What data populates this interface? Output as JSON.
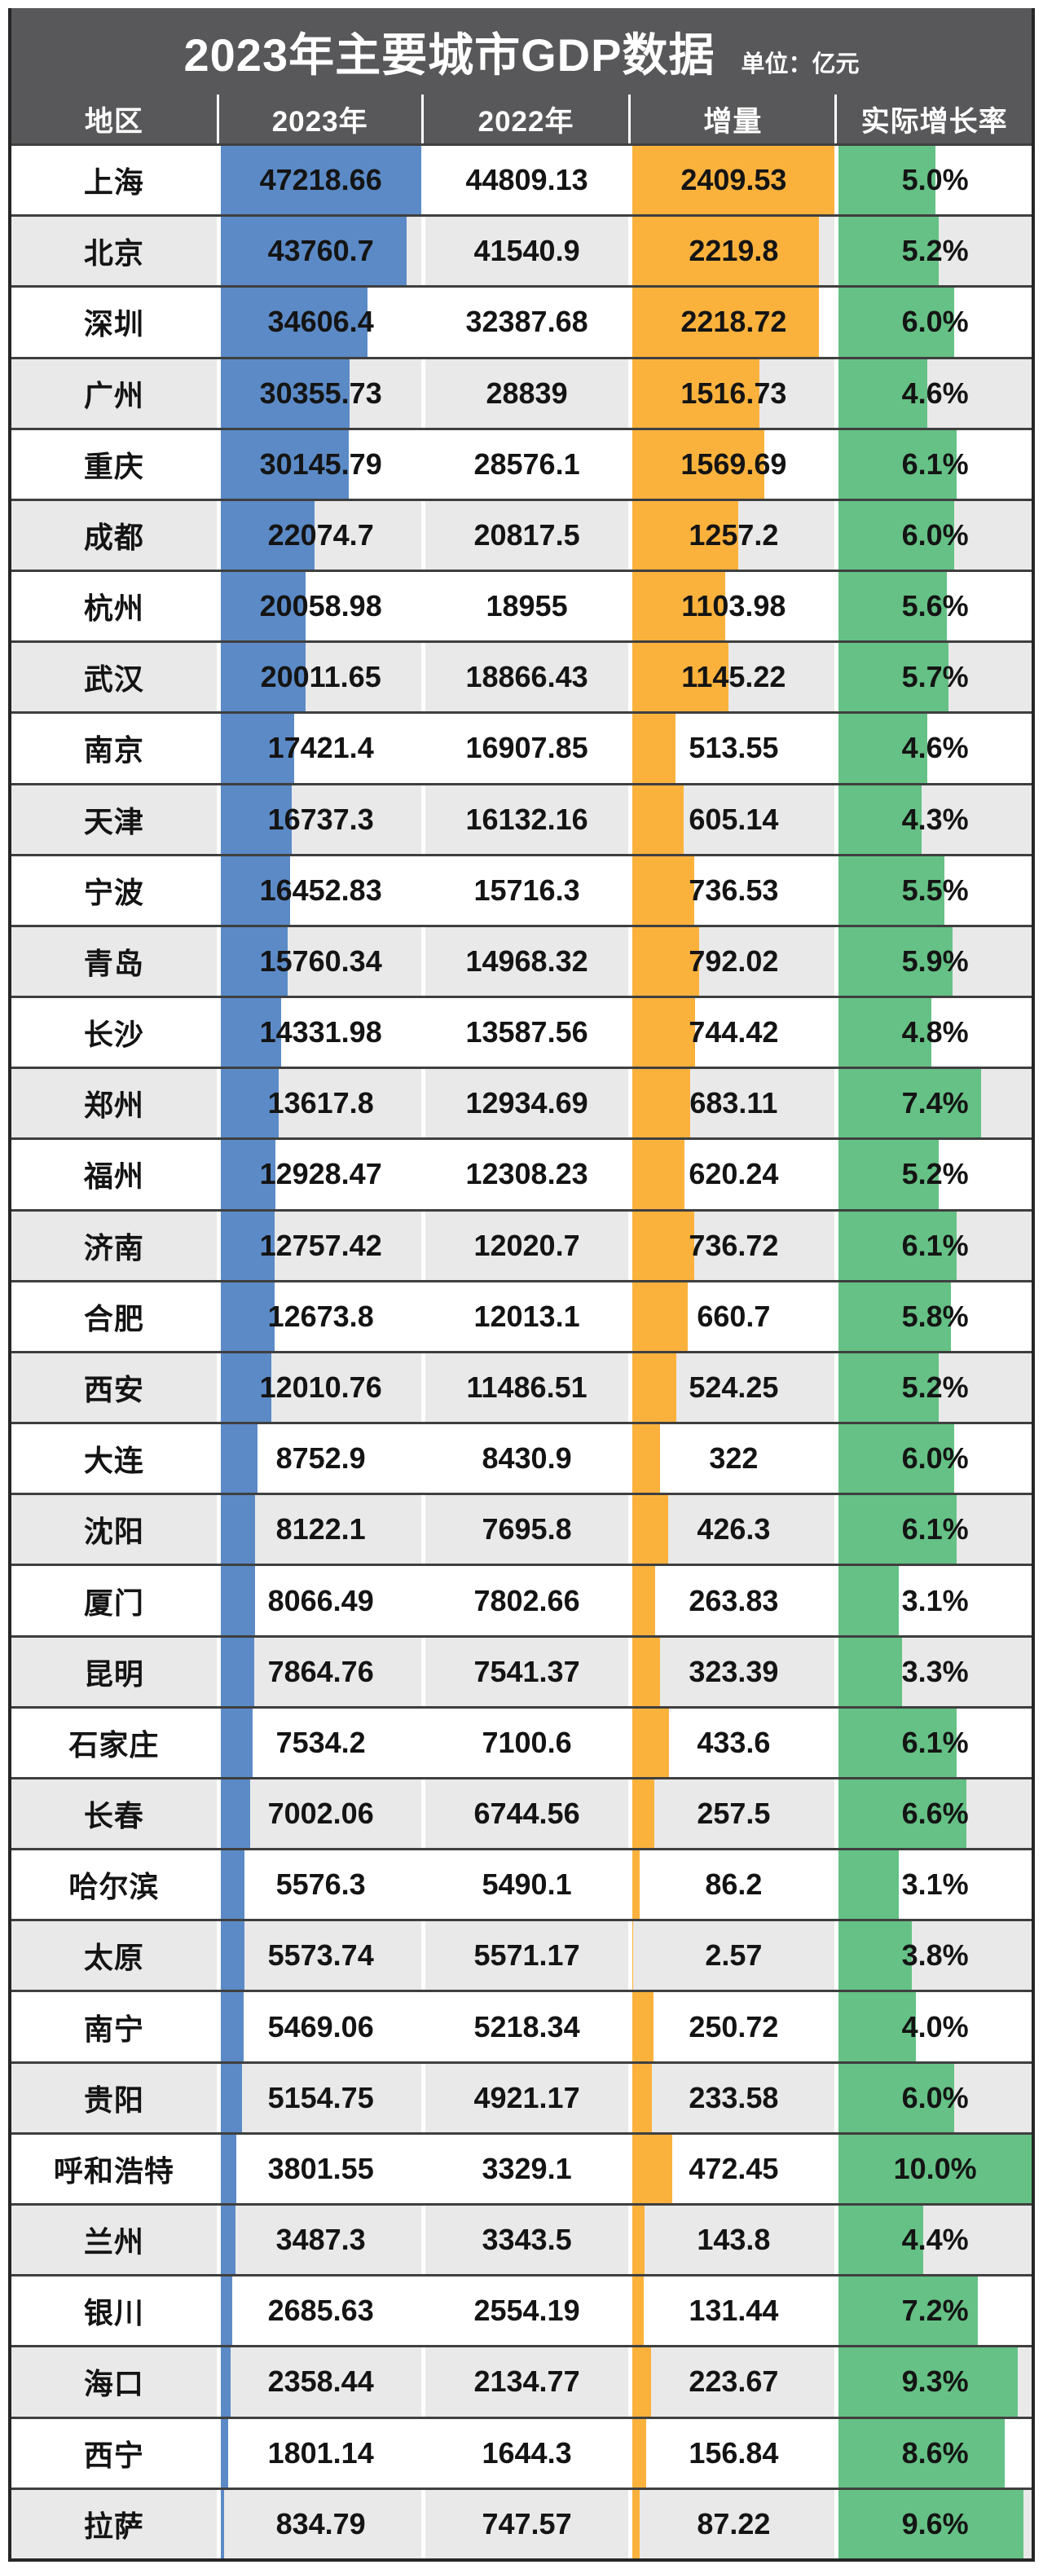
{
  "header": {
    "title": "2023年主要城市GDP数据",
    "unit": "单位：亿元"
  },
  "colors": {
    "header_bg": "#58585a",
    "header_text": "#ffffff",
    "bar_blue": "#5b8ac6",
    "bar_orange": "#fbb23d",
    "bar_green": "#65c185",
    "row_alt_bg": "#e9e9e9",
    "row_separator": "#3f3f3f",
    "outer_border": "#262626",
    "body_text": "#141414"
  },
  "chart_data": {
    "type": "table",
    "title": "2023年主要城市GDP数据",
    "unit": "亿元",
    "columns": [
      "地区",
      "2023年",
      "2022年",
      "增量",
      "实际增长率"
    ],
    "bar_columns": [
      "2023年",
      "增量",
      "实际增长率"
    ],
    "bar_scales": {
      "gdp_2023_max": 47218.66,
      "delta_max": 2409.53,
      "rate_max_percent": 10.0
    },
    "rows": [
      {
        "city": "上海",
        "gdp_2023": "47218.66",
        "gdp_2022": "44809.13",
        "delta": "2409.53",
        "rate": "5.0%"
      },
      {
        "city": "北京",
        "gdp_2023": "43760.7",
        "gdp_2022": "41540.9",
        "delta": "2219.8",
        "rate": "5.2%"
      },
      {
        "city": "深圳",
        "gdp_2023": "34606.4",
        "gdp_2022": "32387.68",
        "delta": "2218.72",
        "rate": "6.0%"
      },
      {
        "city": "广州",
        "gdp_2023": "30355.73",
        "gdp_2022": "28839",
        "delta": "1516.73",
        "rate": "4.6%"
      },
      {
        "city": "重庆",
        "gdp_2023": "30145.79",
        "gdp_2022": "28576.1",
        "delta": "1569.69",
        "rate": "6.1%"
      },
      {
        "city": "成都",
        "gdp_2023": "22074.7",
        "gdp_2022": "20817.5",
        "delta": "1257.2",
        "rate": "6.0%"
      },
      {
        "city": "杭州",
        "gdp_2023": "20058.98",
        "gdp_2022": "18955",
        "delta": "1103.98",
        "rate": "5.6%"
      },
      {
        "city": "武汉",
        "gdp_2023": "20011.65",
        "gdp_2022": "18866.43",
        "delta": "1145.22",
        "rate": "5.7%"
      },
      {
        "city": "南京",
        "gdp_2023": "17421.4",
        "gdp_2022": "16907.85",
        "delta": "513.55",
        "rate": "4.6%"
      },
      {
        "city": "天津",
        "gdp_2023": "16737.3",
        "gdp_2022": "16132.16",
        "delta": "605.14",
        "rate": "4.3%"
      },
      {
        "city": "宁波",
        "gdp_2023": "16452.83",
        "gdp_2022": "15716.3",
        "delta": "736.53",
        "rate": "5.5%"
      },
      {
        "city": "青岛",
        "gdp_2023": "15760.34",
        "gdp_2022": "14968.32",
        "delta": "792.02",
        "rate": "5.9%"
      },
      {
        "city": "长沙",
        "gdp_2023": "14331.98",
        "gdp_2022": "13587.56",
        "delta": "744.42",
        "rate": "4.8%"
      },
      {
        "city": "郑州",
        "gdp_2023": "13617.8",
        "gdp_2022": "12934.69",
        "delta": "683.11",
        "rate": "7.4%"
      },
      {
        "city": "福州",
        "gdp_2023": "12928.47",
        "gdp_2022": "12308.23",
        "delta": "620.24",
        "rate": "5.2%"
      },
      {
        "city": "济南",
        "gdp_2023": "12757.42",
        "gdp_2022": "12020.7",
        "delta": "736.72",
        "rate": "6.1%"
      },
      {
        "city": "合肥",
        "gdp_2023": "12673.8",
        "gdp_2022": "12013.1",
        "delta": "660.7",
        "rate": "5.8%"
      },
      {
        "city": "西安",
        "gdp_2023": "12010.76",
        "gdp_2022": "11486.51",
        "delta": "524.25",
        "rate": "5.2%"
      },
      {
        "city": "大连",
        "gdp_2023": "8752.9",
        "gdp_2022": "8430.9",
        "delta": "322",
        "rate": "6.0%"
      },
      {
        "city": "沈阳",
        "gdp_2023": "8122.1",
        "gdp_2022": "7695.8",
        "delta": "426.3",
        "rate": "6.1%"
      },
      {
        "city": "厦门",
        "gdp_2023": "8066.49",
        "gdp_2022": "7802.66",
        "delta": "263.83",
        "rate": "3.1%"
      },
      {
        "city": "昆明",
        "gdp_2023": "7864.76",
        "gdp_2022": "7541.37",
        "delta": "323.39",
        "rate": "3.3%"
      },
      {
        "city": "石家庄",
        "gdp_2023": "7534.2",
        "gdp_2022": "7100.6",
        "delta": "433.6",
        "rate": "6.1%"
      },
      {
        "city": "长春",
        "gdp_2023": "7002.06",
        "gdp_2022": "6744.56",
        "delta": "257.5",
        "rate": "6.6%"
      },
      {
        "city": "哈尔滨",
        "gdp_2023": "5576.3",
        "gdp_2022": "5490.1",
        "delta": "86.2",
        "rate": "3.1%"
      },
      {
        "city": "太原",
        "gdp_2023": "5573.74",
        "gdp_2022": "5571.17",
        "delta": "2.57",
        "rate": "3.8%"
      },
      {
        "city": "南宁",
        "gdp_2023": "5469.06",
        "gdp_2022": "5218.34",
        "delta": "250.72",
        "rate": "4.0%"
      },
      {
        "city": "贵阳",
        "gdp_2023": "5154.75",
        "gdp_2022": "4921.17",
        "delta": "233.58",
        "rate": "6.0%"
      },
      {
        "city": "呼和浩特",
        "gdp_2023": "3801.55",
        "gdp_2022": "3329.1",
        "delta": "472.45",
        "rate": "10.0%"
      },
      {
        "city": "兰州",
        "gdp_2023": "3487.3",
        "gdp_2022": "3343.5",
        "delta": "143.8",
        "rate": "4.4%"
      },
      {
        "city": "银川",
        "gdp_2023": "2685.63",
        "gdp_2022": "2554.19",
        "delta": "131.44",
        "rate": "7.2%"
      },
      {
        "city": "海口",
        "gdp_2023": "2358.44",
        "gdp_2022": "2134.77",
        "delta": "223.67",
        "rate": "9.3%"
      },
      {
        "city": "西宁",
        "gdp_2023": "1801.14",
        "gdp_2022": "1644.3",
        "delta": "156.84",
        "rate": "8.6%"
      },
      {
        "city": "拉萨",
        "gdp_2023": "834.79",
        "gdp_2022": "747.57",
        "delta": "87.22",
        "rate": "9.6%"
      }
    ]
  }
}
